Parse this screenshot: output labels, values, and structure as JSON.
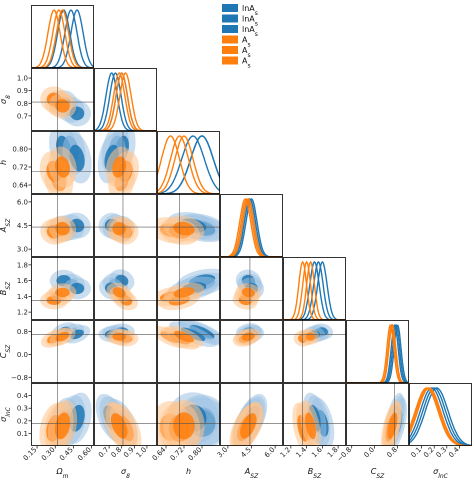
{
  "chart_data": {
    "type": "corner",
    "colors": {
      "blue": "#1f77b4",
      "orange": "#ff7f0e",
      "light_blue": "#9fc3e3",
      "light_orange": "#ffc48e"
    },
    "parameters": [
      {
        "label": "Ω_m",
        "range": [
          0.1,
          0.62
        ],
        "ticks": [
          0.15,
          0.3,
          0.45,
          0.6
        ],
        "tick_labels": [
          "0.15",
          "0.30",
          "0.45",
          "0.60"
        ]
      },
      {
        "label": "σ_8",
        "range": [
          0.58,
          1.08
        ],
        "ticks": [
          0.7,
          0.8,
          0.9,
          1.0
        ],
        "tick_labels": [
          "0.7",
          "0.8",
          "0.9",
          "1.0"
        ]
      },
      {
        "label": "h",
        "range": [
          0.6,
          0.88
        ],
        "ticks": [
          0.64,
          0.72,
          0.8
        ],
        "tick_labels": [
          "0.64",
          "0.72",
          "0.80"
        ]
      },
      {
        "label": "A_SZ",
        "range": [
          2.5,
          6.5
        ],
        "ticks": [
          3.0,
          4.5,
          6.0
        ],
        "tick_labels": [
          "3.0",
          "4.5",
          "6.0"
        ]
      },
      {
        "label": "B_SZ",
        "range": [
          1.1,
          1.9
        ],
        "ticks": [
          1.2,
          1.4,
          1.6,
          1.8
        ],
        "tick_labels": [
          "1.2",
          "1.4",
          "1.6",
          "1.8"
        ]
      },
      {
        "label": "C_SZ",
        "range": [
          -1.0,
          1.2
        ],
        "ticks": [
          -0.8,
          0.0,
          0.8
        ],
        "tick_labels": [
          "−0.8",
          "0.0",
          "0.8"
        ]
      },
      {
        "label": "σ_lnC",
        "range": [
          0.0,
          0.5
        ],
        "ticks": [
          0.1,
          0.2,
          0.3,
          0.4
        ],
        "tick_labels": [
          "0.1",
          "0.2",
          "0.3",
          "0.4"
        ]
      }
    ],
    "legend": {
      "placement": "top-right",
      "entries": [
        {
          "label": "lnA_s",
          "color": "#1f77b4"
        },
        {
          "label": "lnA_s",
          "color": "#1f77b4"
        },
        {
          "label": "lnA_s",
          "color": "#1f77b4"
        },
        {
          "label": "A_s",
          "color": "#ff7f0e"
        },
        {
          "label": "A_s",
          "color": "#ff7f0e"
        },
        {
          "label": "A_s",
          "color": "#ff7f0e"
        }
      ]
    },
    "series": [
      {
        "color": "blue",
        "mean": [
          0.43,
          0.75,
          0.8,
          4.4,
          1.55,
          0.75,
          0.2
        ],
        "sigma": [
          0.05,
          0.045,
          0.05,
          0.35,
          0.06,
          0.12,
          0.09
        ]
      },
      {
        "color": "blue",
        "mean": [
          0.37,
          0.8,
          0.8,
          4.3,
          1.6,
          0.8,
          0.18
        ],
        "sigma": [
          0.05,
          0.045,
          0.05,
          0.35,
          0.06,
          0.12,
          0.09
        ]
      },
      {
        "color": "blue",
        "mean": [
          0.48,
          0.72,
          0.76,
          4.5,
          1.5,
          0.7,
          0.22
        ],
        "sigma": [
          0.05,
          0.045,
          0.05,
          0.35,
          0.06,
          0.12,
          0.09
        ]
      },
      {
        "color": "orange",
        "mean": [
          0.33,
          0.8,
          0.66,
          4.2,
          1.4,
          0.6,
          0.15
        ],
        "sigma": [
          0.05,
          0.045,
          0.04,
          0.35,
          0.05,
          0.12,
          0.09
        ]
      },
      {
        "color": "orange",
        "mean": [
          0.29,
          0.83,
          0.7,
          4.1,
          1.35,
          0.55,
          0.14
        ],
        "sigma": [
          0.05,
          0.045,
          0.04,
          0.35,
          0.05,
          0.12,
          0.09
        ]
      },
      {
        "color": "orange",
        "mean": [
          0.36,
          0.78,
          0.72,
          4.3,
          1.45,
          0.62,
          0.16
        ],
        "sigma": [
          0.05,
          0.045,
          0.04,
          0.35,
          0.05,
          0.12,
          0.09
        ]
      }
    ],
    "truth_values": [
      0.32,
      0.81,
      0.7,
      4.4,
      1.35,
      0.7,
      0.18
    ],
    "grid": false
  }
}
